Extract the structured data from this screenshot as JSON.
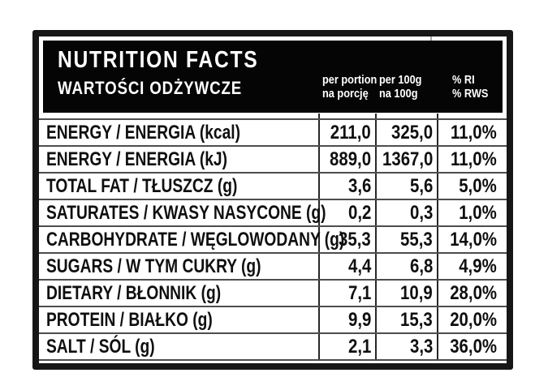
{
  "header": {
    "title_en": "NUTRITION FACTS",
    "title_pl": "WARTOŚCI ODŻYWCZE",
    "columns": {
      "per_portion": {
        "line1": "per portion",
        "line2": "na porcję"
      },
      "per_100g": {
        "line1": "per 100g",
        "line2": "na 100g"
      },
      "percent_ri": {
        "line1": "% RI",
        "line2": "% RWS"
      }
    }
  },
  "table": {
    "rows": [
      {
        "label": "ENERGY / ENERGIA (kcal)",
        "per_portion": "211,0",
        "per_100g": "325,0",
        "percent_ri": "11,0%"
      },
      {
        "label": "ENERGY / ENERGIA (kJ)",
        "per_portion": "889,0",
        "per_100g": "1367,0",
        "percent_ri": "11,0%"
      },
      {
        "label": "TOTAL FAT / TŁUSZCZ (g)",
        "per_portion": "3,6",
        "per_100g": "5,6",
        "percent_ri": "5,0%"
      },
      {
        "label": "SATURATES / KWASY NASYCONE (g)",
        "per_portion": "0,2",
        "per_100g": "0,3",
        "percent_ri": "1,0%"
      },
      {
        "label": "CARBOHYDRATE / WĘGLOWODANY (g)",
        "per_portion": "35,3",
        "per_100g": "55,3",
        "percent_ri": "14,0%"
      },
      {
        "label": "SUGARS / W TYM CUKRY (g)",
        "per_portion": "4,4",
        "per_100g": "6,8",
        "percent_ri": "4,9%"
      },
      {
        "label": "DIETARY / BŁONNIK (g)",
        "per_portion": "7,1",
        "per_100g": "10,9",
        "percent_ri": "28,0%"
      },
      {
        "label": "PROTEIN / BIAŁKO (g)",
        "per_portion": "9,9",
        "per_100g": "15,3",
        "percent_ri": "20,0%"
      },
      {
        "label": "SALT / SÓL (g)",
        "per_portion": "2,1",
        "per_100g": "3,3",
        "percent_ri": "36,0%"
      }
    ]
  },
  "colors": {
    "frame_border": "#161616",
    "header_bg": "#050505",
    "header_text": "#ffffff",
    "row_text": "#0f0f0f",
    "grid_line_horizontal": "#4d4d4d",
    "grid_line_vertical": "#282828",
    "background": "#ffffff"
  }
}
